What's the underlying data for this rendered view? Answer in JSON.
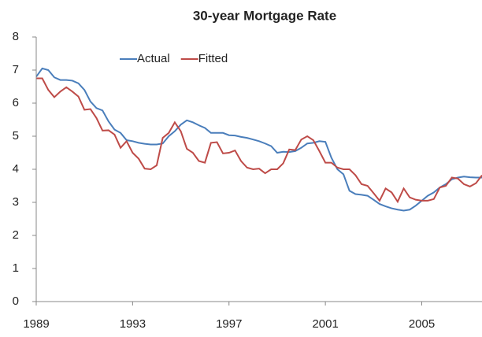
{
  "chart_data": {
    "type": "line",
    "title": "30-year Mortgage Rate",
    "x": [
      1989.0,
      1989.25,
      1989.5,
      1989.75,
      1990.0,
      1990.25,
      1990.5,
      1990.75,
      1991.0,
      1991.25,
      1991.5,
      1991.75,
      1992.0,
      1992.25,
      1992.5,
      1992.75,
      1993.0,
      1993.25,
      1993.5,
      1993.75,
      1994.0,
      1994.25,
      1994.5,
      1994.75,
      1995.0,
      1995.25,
      1995.5,
      1995.75,
      1996.0,
      1996.25,
      1996.5,
      1996.75,
      1997.0,
      1997.25,
      1997.5,
      1997.75,
      1998.0,
      1998.25,
      1998.5,
      1998.75,
      1999.0,
      1999.25,
      1999.5,
      1999.75,
      2000.0,
      2000.25,
      2000.5,
      2000.75,
      2001.0,
      2001.25,
      2001.5,
      2001.75,
      2002.0,
      2002.25,
      2002.5,
      2002.75,
      2003.0,
      2003.25,
      2003.5,
      2003.75,
      2004.0,
      2004.25,
      2004.5,
      2004.75,
      2005.0,
      2005.25,
      2005.5,
      2005.75,
      2006.0,
      2006.25,
      2006.5,
      2006.75,
      2007.0,
      2007.25,
      2007.5
    ],
    "series": [
      {
        "name": "Actual",
        "color": "#4a7ebb",
        "values": [
          6.8,
          7.05,
          7.0,
          6.78,
          6.7,
          6.7,
          6.68,
          6.6,
          6.4,
          6.05,
          5.85,
          5.78,
          5.45,
          5.2,
          5.1,
          4.88,
          4.85,
          4.8,
          4.77,
          4.75,
          4.75,
          4.78,
          5.0,
          5.15,
          5.35,
          5.48,
          5.42,
          5.33,
          5.25,
          5.1,
          5.1,
          5.1,
          5.03,
          5.02,
          4.98,
          4.95,
          4.9,
          4.85,
          4.78,
          4.7,
          4.5,
          4.53,
          4.52,
          4.55,
          4.65,
          4.78,
          4.8,
          4.85,
          4.83,
          4.35,
          4.0,
          3.85,
          3.35,
          3.25,
          3.23,
          3.2,
          3.08,
          2.95,
          2.88,
          2.82,
          2.78,
          2.75,
          2.78,
          2.9,
          3.05,
          3.2,
          3.3,
          3.45,
          3.55,
          3.7,
          3.75,
          3.78,
          3.76,
          3.75,
          3.75
        ]
      },
      {
        "name": "Fitted",
        "color": "#be4b48",
        "values": [
          6.75,
          6.75,
          6.4,
          6.18,
          6.35,
          6.48,
          6.35,
          6.2,
          5.8,
          5.82,
          5.55,
          5.17,
          5.18,
          5.05,
          4.65,
          4.85,
          4.5,
          4.32,
          4.02,
          4.0,
          4.12,
          4.95,
          5.1,
          5.42,
          5.15,
          4.62,
          4.5,
          4.25,
          4.2,
          4.8,
          4.82,
          4.48,
          4.5,
          4.57,
          4.25,
          4.05,
          4.0,
          4.02,
          3.88,
          4.0,
          4.0,
          4.18,
          4.6,
          4.58,
          4.9,
          5.0,
          4.88,
          4.55,
          4.2,
          4.2,
          4.05,
          4.0,
          4.0,
          3.82,
          3.55,
          3.5,
          3.28,
          3.05,
          3.42,
          3.3,
          3.02,
          3.42,
          3.15,
          3.08,
          3.05,
          3.05,
          3.1,
          3.45,
          3.5,
          3.75,
          3.72,
          3.55,
          3.48,
          3.58,
          3.82
        ]
      }
    ],
    "xlim": [
      1989,
      2007.5
    ],
    "xticks": [
      1989,
      1993,
      1997,
      2001,
      2005
    ],
    "ylim": [
      0,
      8
    ],
    "yticks": [
      0,
      1,
      2,
      3,
      4,
      5,
      6,
      7,
      8
    ],
    "grid": false,
    "legend": "top"
  }
}
